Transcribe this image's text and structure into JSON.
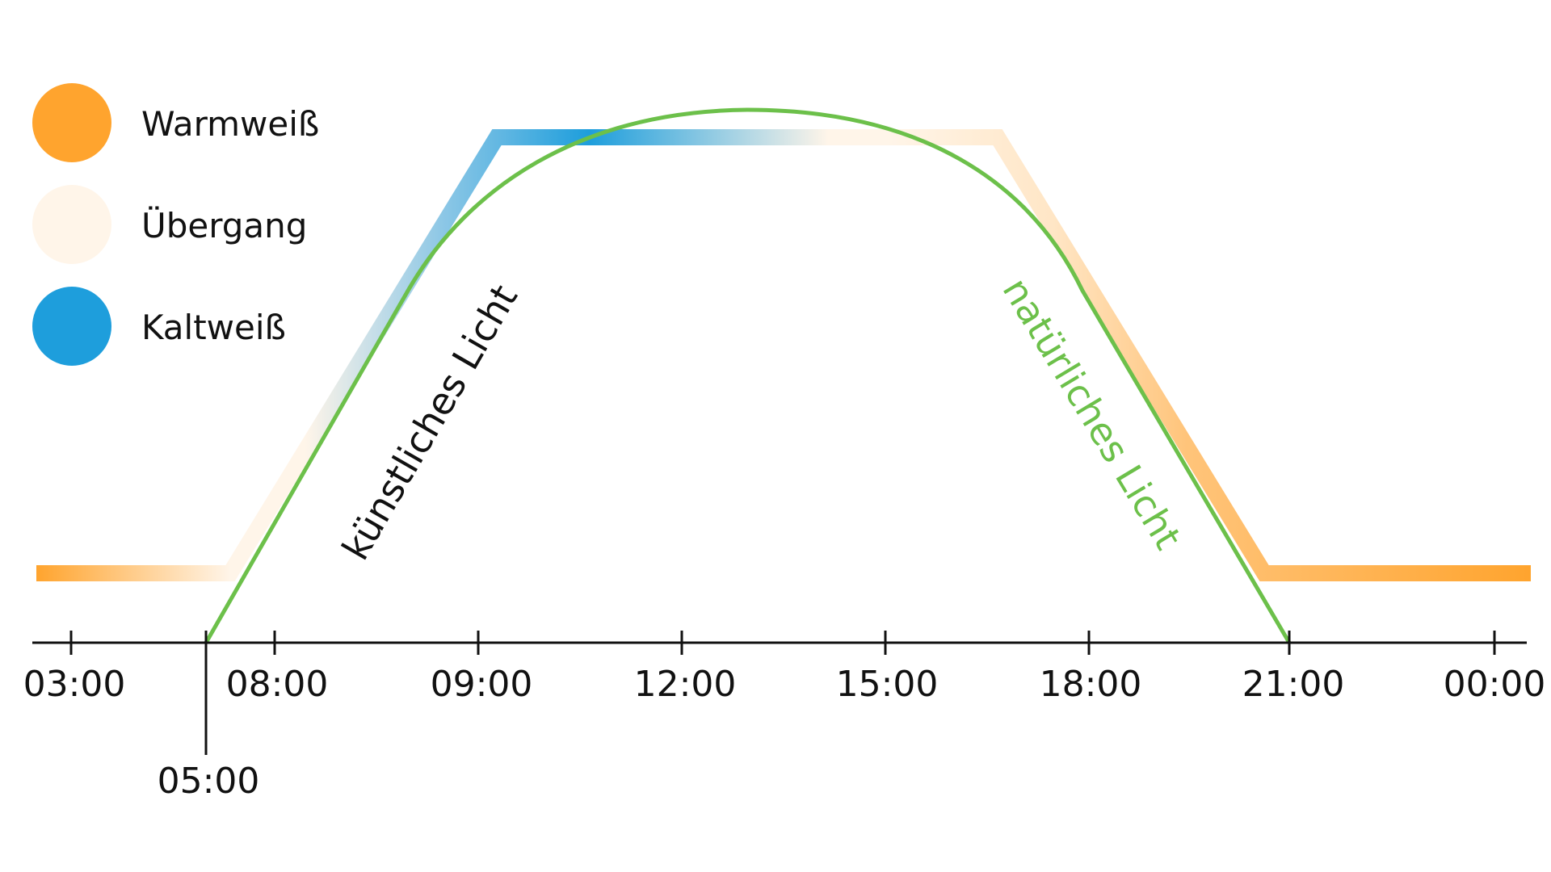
{
  "legend": [
    {
      "label": "Warmweiß",
      "color": "#FFA42E"
    },
    {
      "label": "Übergang",
      "color": "#FFF5E9"
    },
    {
      "label": "Kaltweiß",
      "color": "#1E9EDC"
    }
  ],
  "curves": {
    "artificial_label": "künstliches Licht",
    "natural_label": "natürliches Licht",
    "natural_color": "#6CC04A",
    "artificial_text_color": "#111111"
  },
  "axis": {
    "ticks": [
      "03:00",
      "08:00",
      "09:00",
      "12:00",
      "15:00",
      "18:00",
      "21:00",
      "00:00"
    ],
    "extra_tick": "05:00",
    "color": "#111111"
  }
}
